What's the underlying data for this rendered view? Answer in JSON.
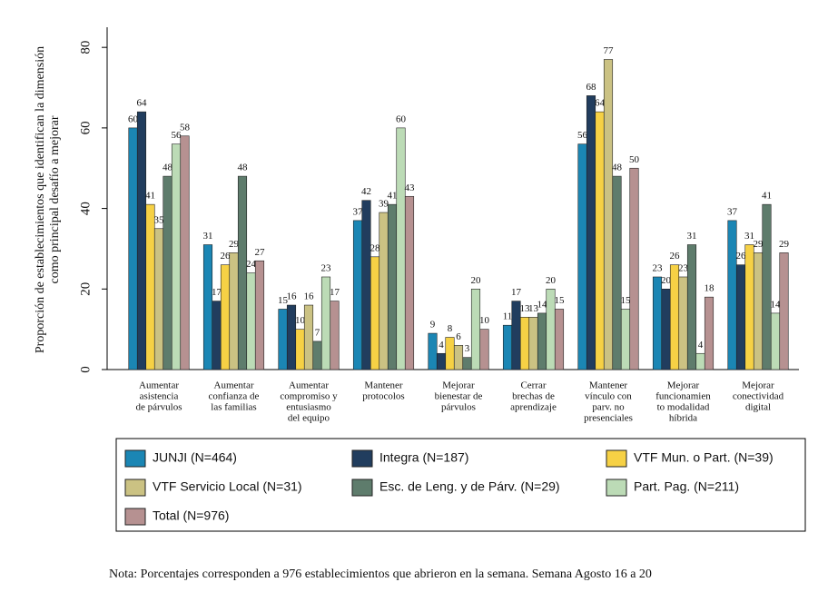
{
  "chart_data": {
    "type": "bar",
    "y_label": [
      "Proporción de establecimientos que identifican la dimensión",
      "como principal desafío a mejorar"
    ],
    "categories": [
      [
        "Aumentar",
        "asistencia",
        "de párvulos"
      ],
      [
        "Aumentar",
        "confianza de",
        "las familias"
      ],
      [
        "Aumentar",
        "compromiso y",
        "entusiasmo",
        "del equipo"
      ],
      [
        "Mantener",
        "protocolos"
      ],
      [
        "Mejorar",
        "bienestar de",
        "párvulos"
      ],
      [
        "Cerrar",
        "brechas de",
        "aprendizaje"
      ],
      [
        "Mantener",
        "vínculo con",
        "parv. no",
        "presenciales"
      ],
      [
        "Mejorar",
        "funcionamien",
        "to modalidad",
        "híbrida"
      ],
      [
        "Mejorar",
        "conectividad",
        "digital"
      ]
    ],
    "series": [
      {
        "name": "JUNJI (N=464)",
        "color": "#1b86b4",
        "values": [
          60,
          31,
          15,
          37,
          9,
          11,
          56,
          23,
          37
        ]
      },
      {
        "name": "Integra (N=187)",
        "color": "#213d5e",
        "values": [
          64,
          17,
          16,
          42,
          4,
          17,
          68,
          20,
          26
        ]
      },
      {
        "name": "VTF Mun. o Part. (N=39)",
        "color": "#f6d145",
        "values": [
          41,
          26,
          10,
          28,
          8,
          13,
          64,
          26,
          31
        ]
      },
      {
        "name": "VTF Servicio Local (N=31)",
        "color": "#cbc283",
        "values": [
          35,
          29,
          16,
          39,
          6,
          13,
          77,
          23,
          29
        ]
      },
      {
        "name": "Esc. de Leng. y de Párv. (N=29)",
        "color": "#5e7c6c",
        "values": [
          48,
          48,
          7,
          41,
          3,
          14,
          48,
          31,
          41
        ]
      },
      {
        "name": "Part. Pag. (N=211)",
        "color": "#bcdbb6",
        "values": [
          56,
          24,
          23,
          60,
          20,
          20,
          15,
          4,
          14
        ]
      },
      {
        "name": "Total (N=976)",
        "color": "#b69191",
        "values": [
          58,
          27,
          17,
          43,
          10,
          15,
          50,
          18,
          29
        ]
      }
    ],
    "ylim": [
      0,
      85
    ],
    "yticks": [
      0,
      20,
      40,
      60,
      80
    ],
    "note": "Nota: Porcentajes corresponden a 976 establecimientos que abrieron en la semana. Semana Agosto 16 a 20"
  }
}
